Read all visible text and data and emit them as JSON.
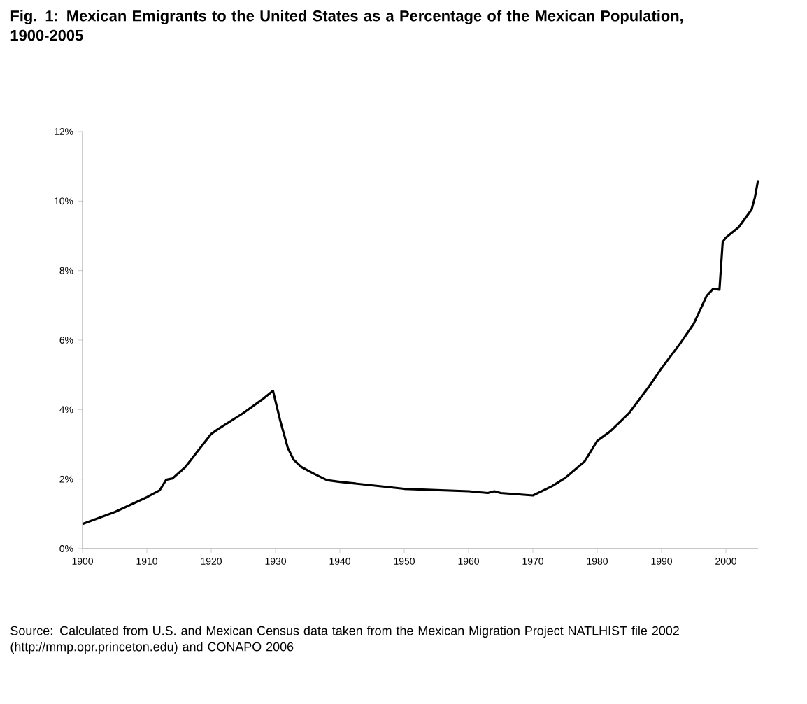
{
  "chart_data": {
    "type": "line",
    "title": "Fig. 1: Mexican Emigrants to the United States as a Percentage of the Mexican Population, 1900-2005",
    "x": [
      1900,
      1905,
      1910,
      1912,
      1913,
      1914,
      1916,
      1918,
      1920,
      1921,
      1925,
      1928,
      1929,
      1929.6,
      1930.7,
      1931.9,
      1932.8,
      1934,
      1936,
      1938,
      1940,
      1950,
      1960,
      1963,
      1964,
      1965,
      1970,
      1973,
      1975,
      1978,
      1980,
      1982,
      1985,
      1988,
      1990,
      1993,
      1995,
      1997,
      1998,
      1999,
      1999.5,
      2000,
      2002,
      2004,
      2004.5,
      2005
    ],
    "values": [
      0.71,
      1.05,
      1.48,
      1.68,
      1.98,
      2.02,
      2.35,
      2.83,
      3.3,
      3.43,
      3.9,
      4.3,
      4.45,
      4.54,
      3.7,
      2.9,
      2.56,
      2.35,
      2.15,
      1.97,
      1.92,
      1.72,
      1.65,
      1.6,
      1.65,
      1.6,
      1.53,
      1.8,
      2.03,
      2.5,
      3.1,
      3.37,
      3.91,
      4.65,
      5.19,
      5.93,
      6.47,
      7.27,
      7.47,
      7.45,
      8.82,
      8.95,
      9.25,
      9.76,
      10.1,
      10.6
    ],
    "color": "#000000",
    "xlim": [
      1900,
      2005
    ],
    "ylim": [
      0,
      12
    ],
    "xticks": [
      1900,
      1910,
      1920,
      1930,
      1940,
      1950,
      1960,
      1970,
      1980,
      1990,
      2000
    ],
    "yticks": [
      {
        "value": 0,
        "label": "0%"
      },
      {
        "value": 2,
        "label": "2%"
      },
      {
        "value": 4,
        "label": "4%"
      },
      {
        "value": 6,
        "label": "6%"
      },
      {
        "value": 8,
        "label": "8%"
      },
      {
        "value": 10,
        "label": "10%"
      },
      {
        "value": 12,
        "label": "12%"
      }
    ],
    "annotations": [
      "Source: Calculated from U.S. and Mexican Census data taken from the Mexican Migration Project NATLHIST file 2002 (http://mmp.opr.princeton.edu) and CONAPO 2006"
    ],
    "grid": false,
    "marker": "none",
    "line_style": "solid"
  }
}
